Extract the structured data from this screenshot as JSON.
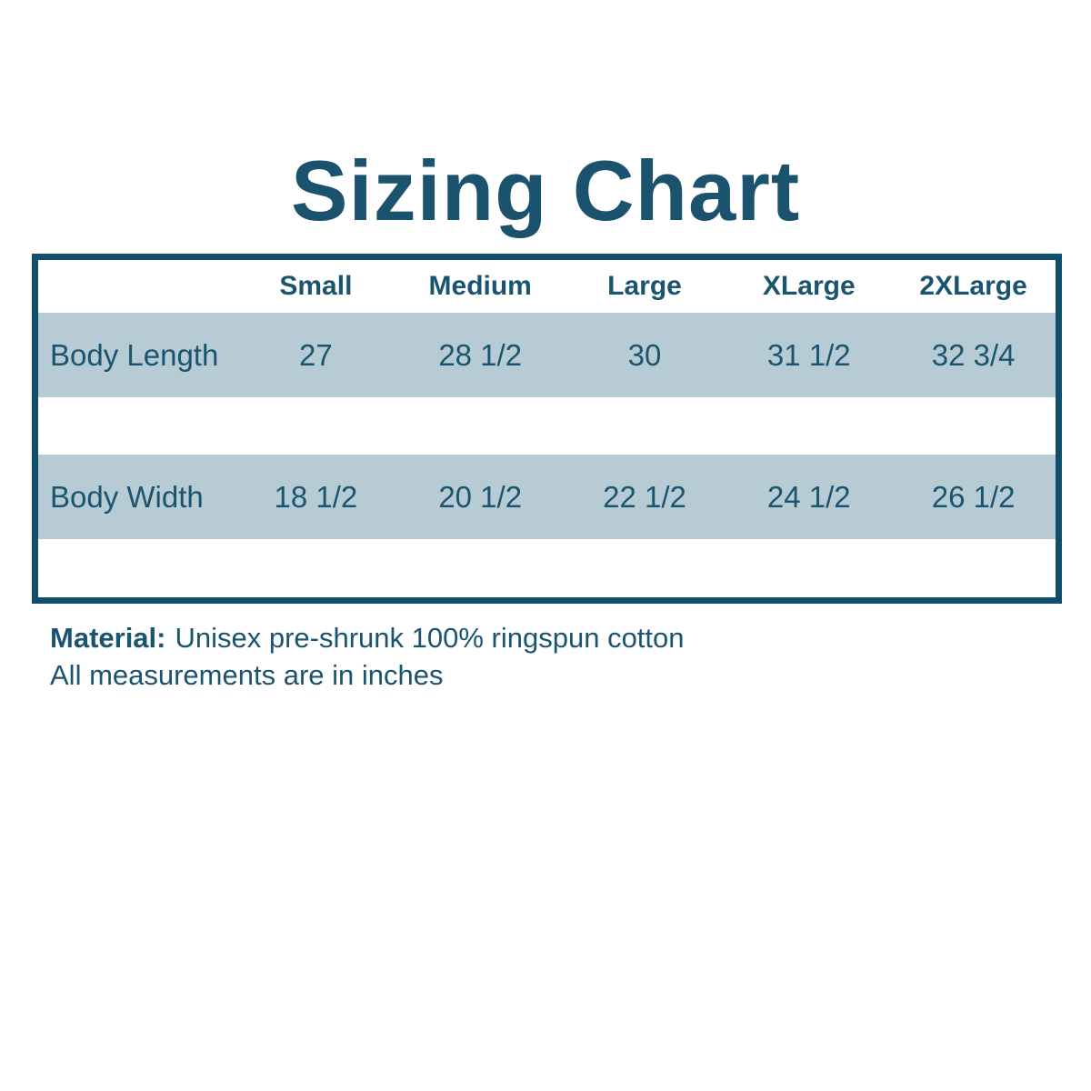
{
  "page": {
    "title": "Sizing Chart"
  },
  "table": {
    "columns": [
      "Small",
      "Medium",
      "Large",
      "XLarge",
      "2XLarge"
    ],
    "rows": [
      {
        "label": "Body Length",
        "values": [
          "27",
          "28 1/2",
          "30",
          "31 1/2",
          "32 3/4"
        ]
      },
      {
        "label": "Body Width",
        "values": [
          "18 1/2",
          "20 1/2",
          "22 1/2",
          "24 1/2",
          "26 1/2"
        ]
      }
    ]
  },
  "footer": {
    "material_label": "Material:",
    "material_value": "Unisex pre-shrunk 100% ringspun cotton",
    "note": "All measurements are in inches"
  },
  "colors": {
    "text": "#1a546f",
    "border": "#114e6c",
    "row_band": "#b7cbd5",
    "background": "#ffffff"
  },
  "chart_data": {
    "type": "table",
    "title": "Sizing Chart",
    "columns": [
      "Small",
      "Medium",
      "Large",
      "XLarge",
      "2XLarge"
    ],
    "rows": [
      {
        "label": "Body Length",
        "values": [
          27,
          28.5,
          30,
          31.5,
          32.75
        ]
      },
      {
        "label": "Body Width",
        "values": [
          18.5,
          20.5,
          22.5,
          24.5,
          26.5
        ]
      }
    ],
    "units": "inches",
    "notes": [
      "Material: Unisex pre-shrunk 100% ringspun cotton",
      "All measurements are in inches"
    ]
  }
}
